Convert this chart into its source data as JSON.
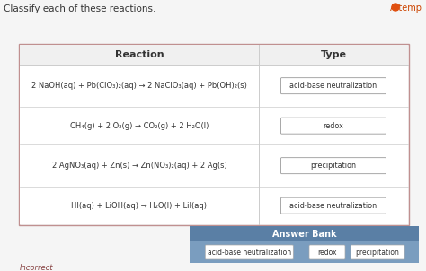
{
  "title_text": "Classify each of these reactions.",
  "attempt_text": "Attemp",
  "incorrect_text": "Incorrect",
  "table_header_reaction": "Reaction",
  "table_header_type": "Type",
  "reactions": [
    "2 NaOH(aq) + Pb(ClO₃)₂(aq) → 2 NaClO₃(aq) + Pb(OH)₂(s)",
    "CH₄(g) + 2 O₂(g) → CO₂(g) + 2 H₂O(l)",
    "2 AgNO₃(aq) + Zn(s) → Zn(NO₃)₂(aq) + 2 Ag(s)",
    "HI(aq) + LiOH(aq) → H₂O(l) + LiI(aq)"
  ],
  "type_labels": [
    "acid-base neutralization",
    "redox",
    "precipitation",
    "acid-base neutralization"
  ],
  "answer_bank_header": "Answer Bank",
  "answer_bank_items": [
    "acid-base neutralization",
    "redox",
    "precipitation"
  ],
  "page_bg": "#e8e8e8",
  "content_bg": "#f5f5f5",
  "table_bg": "#ffffff",
  "table_border": "#c8a0a0",
  "table_inner_border": "#cccccc",
  "header_bg": "#f0f0f0",
  "text_color": "#333333",
  "type_box_border": "#999999",
  "ab_header_bg": "#5a7fa5",
  "ab_body_bg": "#7a9dbf",
  "ab_item_border": "#aaaaaa",
  "attempt_color": "#cc4400",
  "incorrect_color": "#884444",
  "title_color": "#333333"
}
